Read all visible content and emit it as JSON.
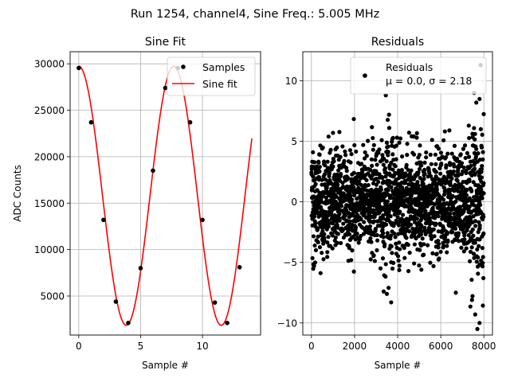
{
  "suptitle": "Run 1254, channel4, Sine Freq.: 5.005 MHz",
  "chart_data": [
    {
      "type": "line",
      "title": "Sine Fit",
      "xlabel": "Sample #",
      "ylabel": "ADC Counts",
      "xlim": [
        -0.7,
        14.7
      ],
      "ylim": [
        800,
        31300
      ],
      "xticks": [
        0,
        5,
        10
      ],
      "yticks": [
        5000,
        10000,
        15000,
        20000,
        25000,
        30000
      ],
      "grid": true,
      "legend": {
        "loc": "upper right",
        "entries": [
          "Samples",
          "Sine fit"
        ]
      },
      "series": [
        {
          "name": "Samples",
          "kind": "scatter",
          "color": "#000000",
          "x": [
            0,
            1,
            2,
            3,
            4,
            5,
            6,
            7,
            8,
            9,
            10,
            11,
            12,
            13
          ],
          "y": [
            29550,
            23700,
            13200,
            4400,
            2100,
            8000,
            18500,
            27400,
            29550,
            23700,
            13200,
            4300,
            2100,
            8100
          ]
        },
        {
          "name": "Sine fit",
          "kind": "line",
          "color": "#ff0000",
          "function": "offset + amplitude*cos(2*pi*x/period)",
          "amplitude": 13950,
          "offset": 15800,
          "period": 7.68,
          "x_range": [
            0,
            14
          ]
        }
      ]
    },
    {
      "type": "scatter",
      "title": "Residuals",
      "xlabel": "Sample #",
      "ylabel": "",
      "xlim": [
        -400,
        8400
      ],
      "ylim": [
        -11,
        12.4
      ],
      "xticks": [
        0,
        2000,
        4000,
        6000,
        8000
      ],
      "yticks": [
        -10,
        -5,
        0,
        5,
        10
      ],
      "grid": true,
      "legend": {
        "loc": "upper right",
        "entries": [
          "Residuals",
          "μ = 0.0, σ = 2.18"
        ]
      },
      "series": [
        {
          "name": "Residuals",
          "color": "#000000",
          "n_points": 8000,
          "mean": 0.0,
          "sigma": 2.18,
          "x_range": [
            0,
            7999
          ],
          "outliers": [
            [
              2450,
              10.4
            ],
            [
              7850,
              11.3
            ],
            [
              3450,
              8.8
            ],
            [
              3600,
              7.2
            ],
            [
              3500,
              -7.6
            ],
            [
              3700,
              -8.3
            ],
            [
              6700,
              -7.5
            ],
            [
              7450,
              -8.1
            ],
            [
              7700,
              -10.5
            ],
            [
              7800,
              -10.0
            ],
            [
              7600,
              -9.3
            ],
            [
              7550,
              9.0
            ],
            [
              7650,
              8.2
            ],
            [
              7800,
              8.5
            ],
            [
              3350,
              -7.4
            ],
            [
              3580,
              -7.1
            ],
            [
              5100,
              -5.6
            ],
            [
              7300,
              6.3
            ],
            [
              1000,
              5.7
            ],
            [
              6400,
              5.9
            ]
          ]
        }
      ]
    }
  ]
}
